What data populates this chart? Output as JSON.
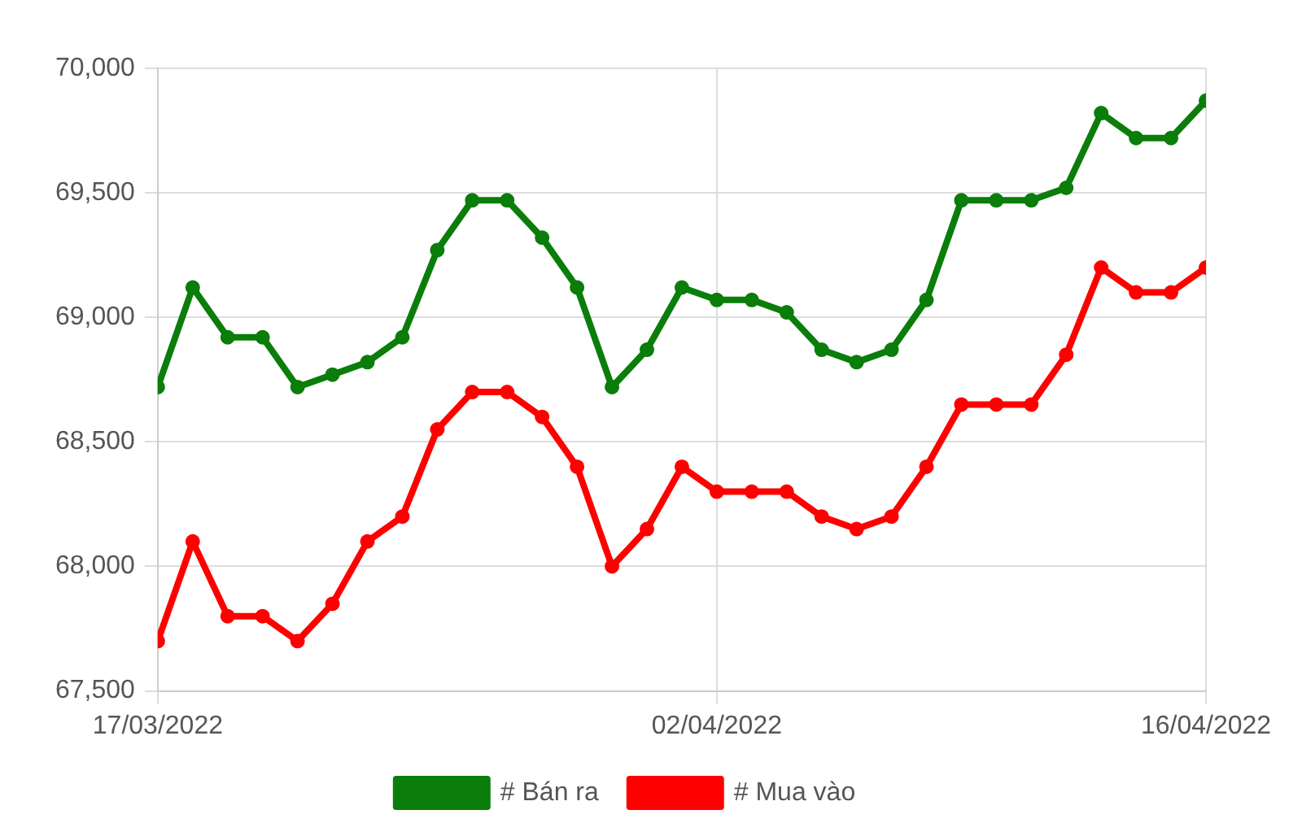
{
  "chart_data": {
    "type": "line",
    "x": [
      "2022-03-17",
      "2022-03-18",
      "2022-03-19",
      "2022-03-20",
      "2022-03-21",
      "2022-03-22",
      "2022-03-23",
      "2022-03-24",
      "2022-03-25",
      "2022-03-26",
      "2022-03-27",
      "2022-03-28",
      "2022-03-29",
      "2022-03-30",
      "2022-03-31",
      "2022-04-01",
      "2022-04-02",
      "2022-04-03",
      "2022-04-04",
      "2022-04-05",
      "2022-04-06",
      "2022-04-07",
      "2022-04-08",
      "2022-04-09",
      "2022-04-10",
      "2022-04-11",
      "2022-04-12",
      "2022-04-13",
      "2022-04-14",
      "2022-04-15",
      "2022-04-16"
    ],
    "series": [
      {
        "name": "# Bán ra",
        "color": "#0a7d0a",
        "values": [
          68720,
          69120,
          68920,
          68920,
          68720,
          68770,
          68820,
          68920,
          69270,
          69470,
          69470,
          69320,
          69120,
          68720,
          68870,
          69120,
          69070,
          69070,
          69020,
          68870,
          68820,
          68870,
          69070,
          69470,
          69470,
          69470,
          69520,
          69820,
          69720,
          69720,
          69870
        ]
      },
      {
        "name": "# Mua vào",
        "color": "#ff0000",
        "values": [
          67700,
          68100,
          67800,
          67800,
          67700,
          67850,
          68100,
          68200,
          68550,
          68700,
          68700,
          68600,
          68400,
          68000,
          68150,
          68400,
          68300,
          68300,
          68300,
          68200,
          68150,
          68200,
          68400,
          68650,
          68650,
          68650,
          68850,
          69200,
          69100,
          69100,
          69200
        ]
      }
    ],
    "xlim": [
      "2022-03-17",
      "2022-04-16"
    ],
    "xticks": [
      {
        "value": "2022-03-17",
        "label": "17/03/2022"
      },
      {
        "value": "2022-04-02",
        "label": "02/04/2022"
      },
      {
        "value": "2022-04-16",
        "label": "16/04/2022"
      }
    ],
    "ylim": [
      67500,
      70000
    ],
    "yticks": [
      {
        "value": 67500,
        "label": "67,500"
      },
      {
        "value": 68000,
        "label": "68,000"
      },
      {
        "value": 68500,
        "label": "68,500"
      },
      {
        "value": 69000,
        "label": "69,000"
      },
      {
        "value": 69500,
        "label": "69,500"
      },
      {
        "value": 70000,
        "label": "70,000"
      }
    ],
    "grid": true,
    "legend": "bottom",
    "marker": "circle",
    "line_style": "solid"
  }
}
